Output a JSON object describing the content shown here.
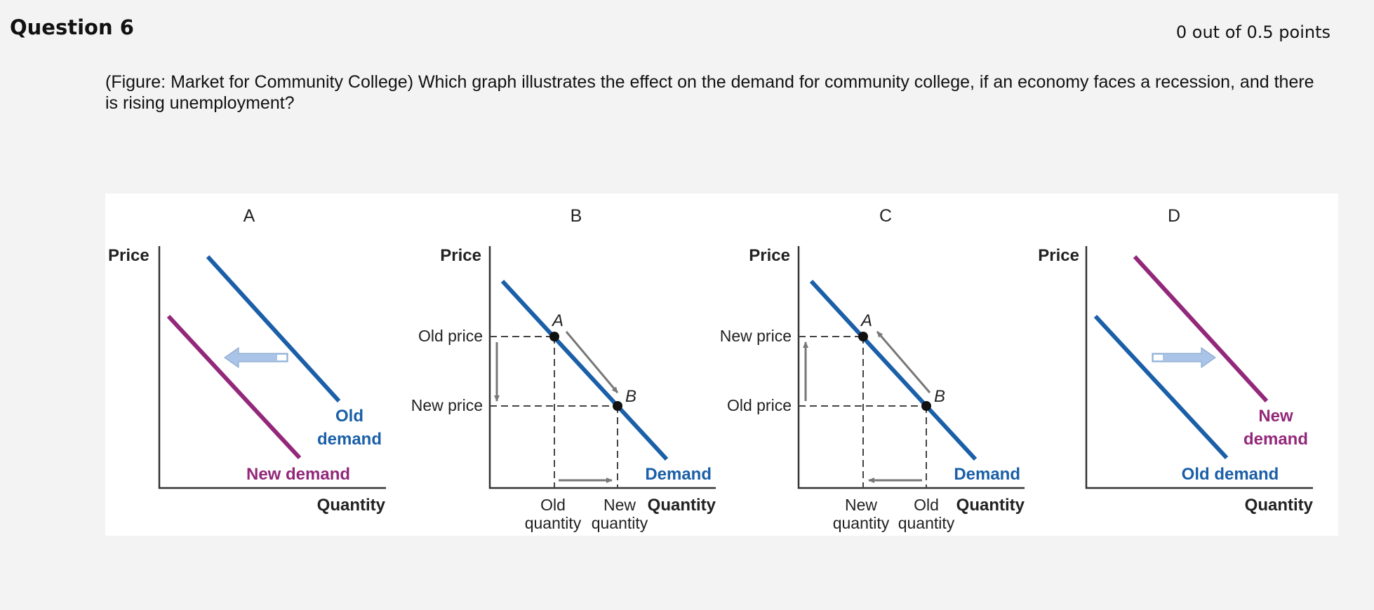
{
  "question": {
    "title": "Question 6",
    "points": "0 out of 0.5 points",
    "text": "(Figure: Market for Community College) Which graph illustrates the effect on the demand for community college, if an economy faces a recession, and there is rising unemployment?"
  },
  "colors": {
    "old_demand": "#1a5fa8",
    "new_demand": "#93287a",
    "axis": "#333333",
    "shift_arrow": "#a9c4e6"
  },
  "figure": {
    "graphs": [
      {
        "letter": "A",
        "price_label": "Price",
        "quantity_label": "Quantity",
        "old_curve_label_line1": "Old",
        "old_curve_label_line2": "demand",
        "new_curve_label": "New demand",
        "shift_direction": "left"
      },
      {
        "letter": "B",
        "price_label": "Price",
        "quantity_label": "Quantity",
        "upper_price_label": "Old price",
        "lower_price_label": "New price",
        "curve_label": "Demand",
        "point_top": "A",
        "point_bottom": "B",
        "qty_left_line1": "Old",
        "qty_left_line2": "quantity",
        "qty_right_line1": "New",
        "qty_right_line2": "quantity"
      },
      {
        "letter": "C",
        "price_label": "Price",
        "quantity_label": "Quantity",
        "upper_price_label": "New price",
        "lower_price_label": "Old price",
        "curve_label": "Demand",
        "point_top": "A",
        "point_bottom": "B",
        "qty_left_line1": "New",
        "qty_left_line2": "quantity",
        "qty_right_line1": "Old",
        "qty_right_line2": "quantity"
      },
      {
        "letter": "D",
        "price_label": "Price",
        "quantity_label": "Quantity",
        "new_curve_label_line1": "New",
        "new_curve_label_line2": "demand",
        "old_curve_label": "Old demand",
        "shift_direction": "right"
      }
    ]
  }
}
